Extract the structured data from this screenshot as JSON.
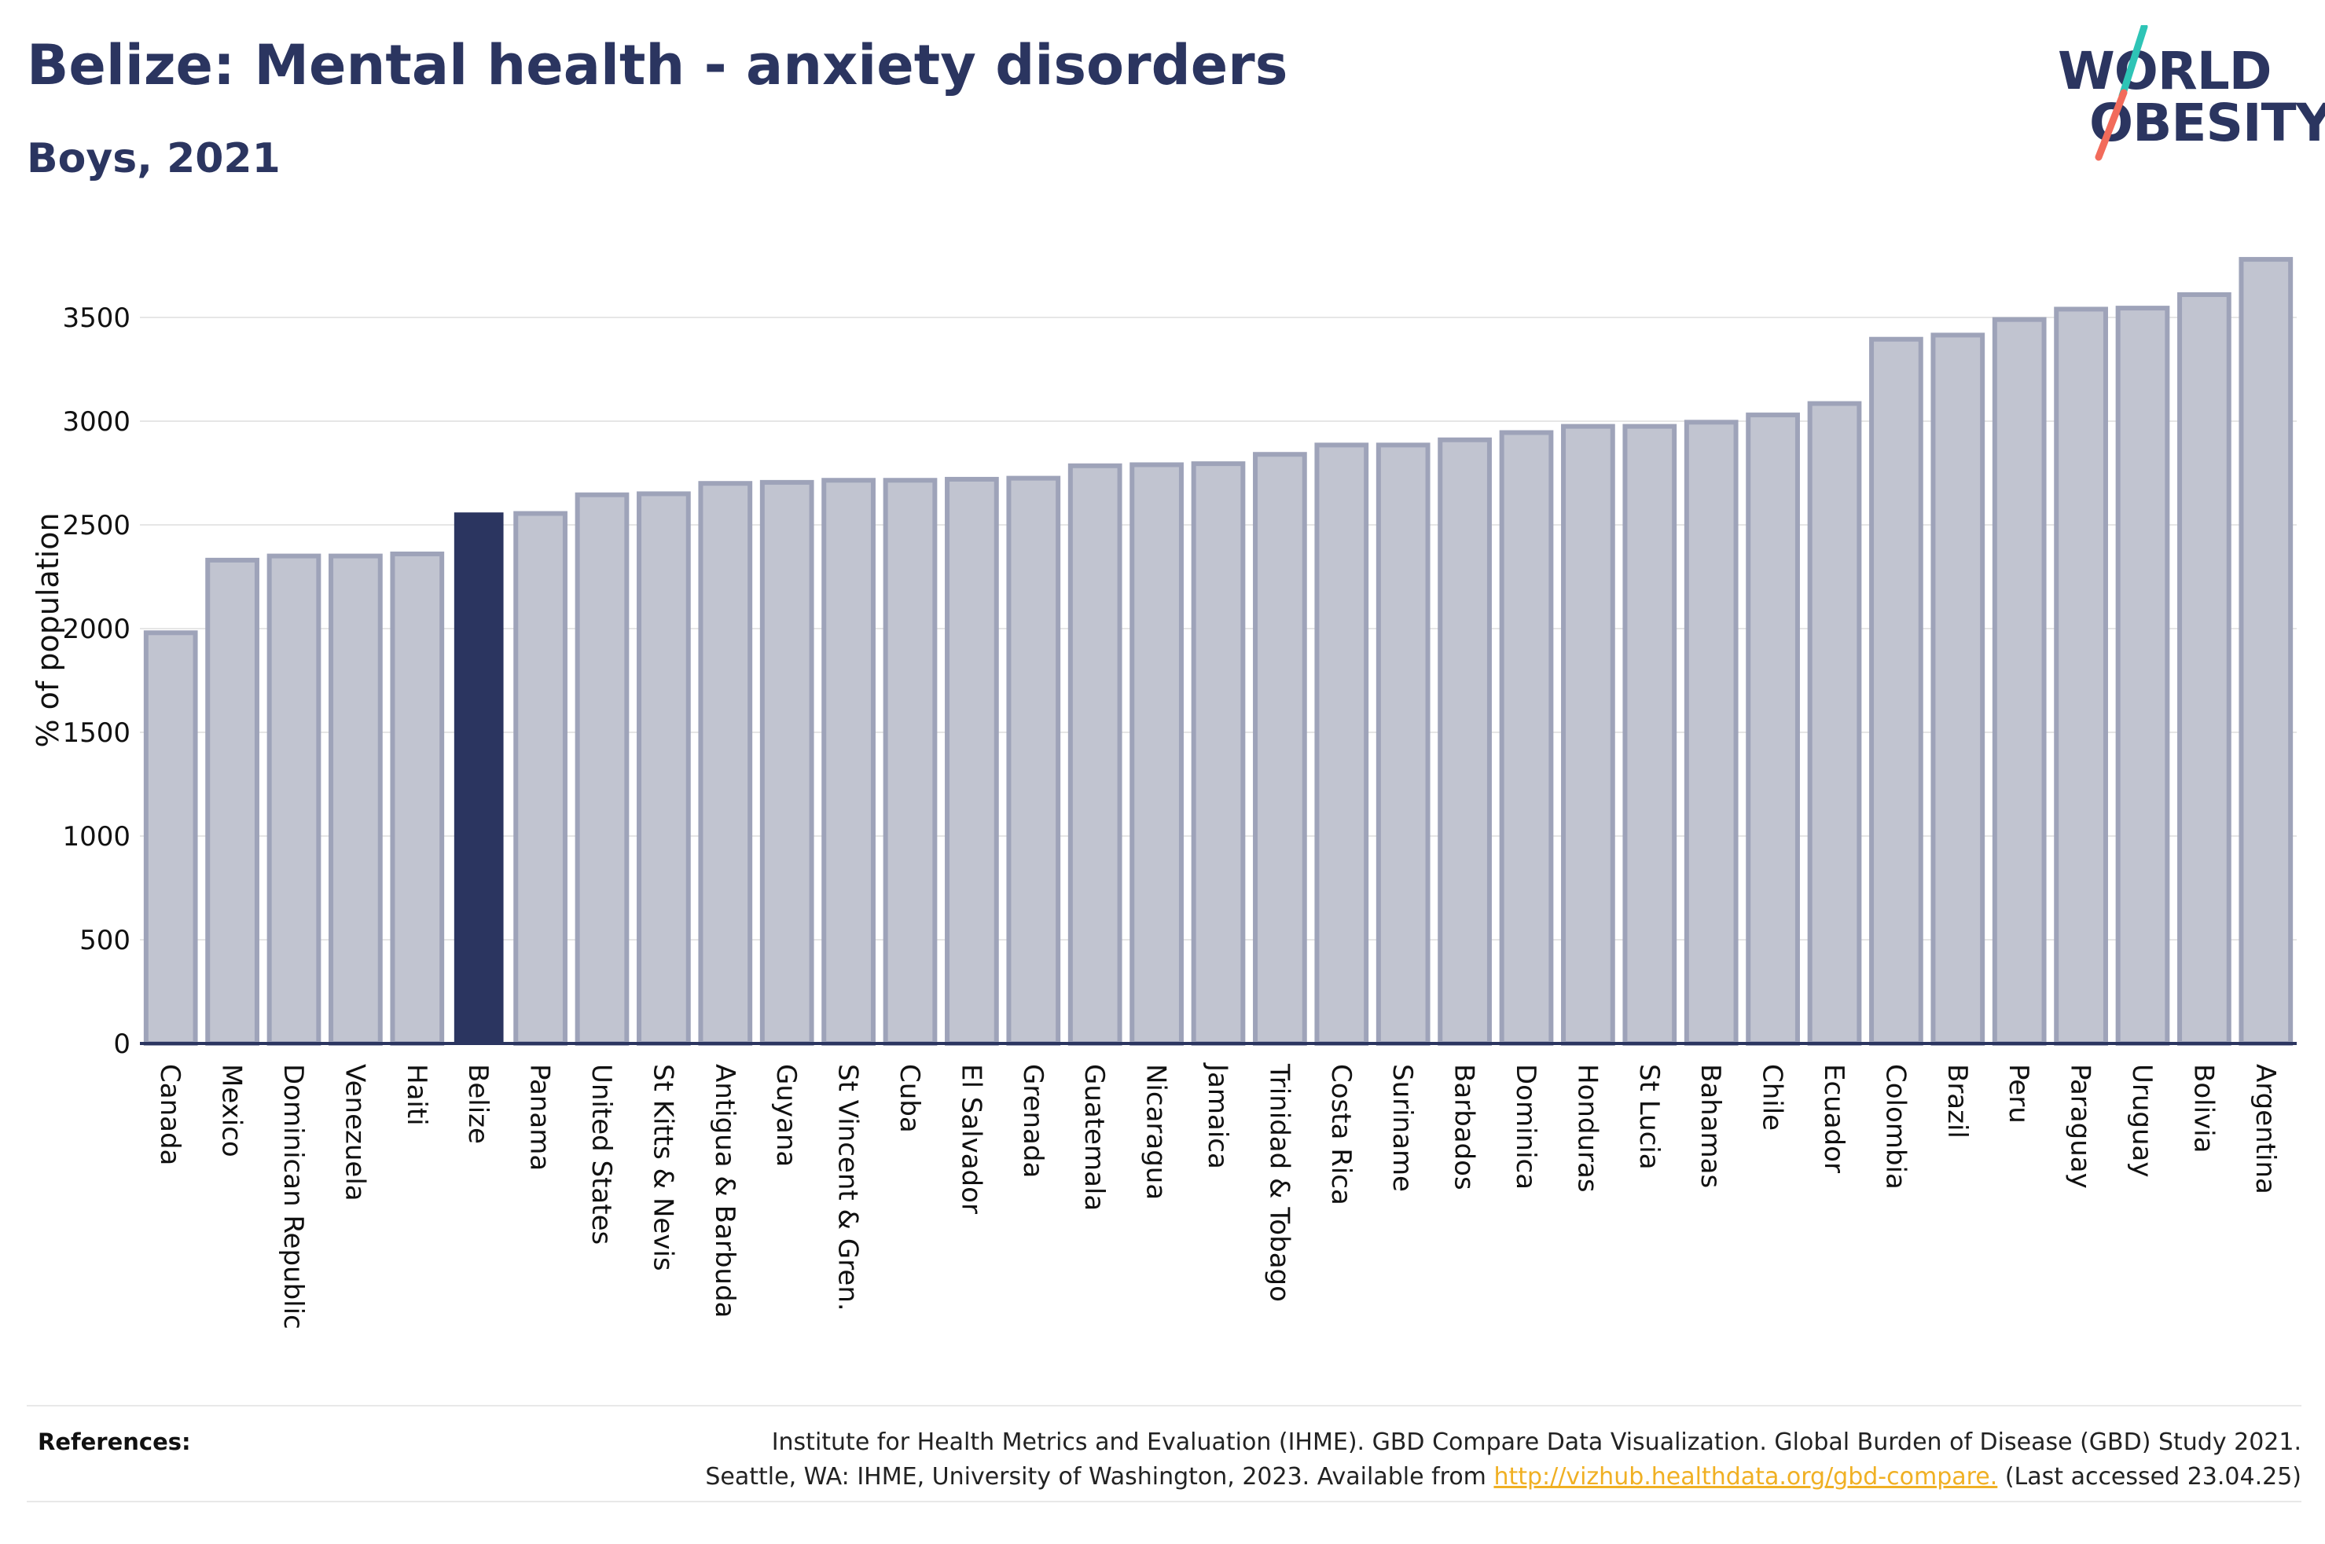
{
  "header": {
    "title": "Belize: Mental health - anxiety disorders",
    "subtitle": "Boys, 2021"
  },
  "logo": {
    "line1": "WORLD",
    "line2": "OBESITY",
    "accent_colors": [
      "#2ec4b6",
      "#f26b5b"
    ]
  },
  "colors": {
    "highlight": "#2b3560",
    "bar_fill": "#c1c4d0",
    "bar_stroke": "#9ea3b9",
    "axis": "#2b3560",
    "grid": "#e6e6e6"
  },
  "chart_data": {
    "type": "bar",
    "title": "Belize: Mental health - anxiety disorders",
    "subtitle": "Boys, 2021",
    "ylabel": "% of population",
    "xlabel": "",
    "ylim": [
      0,
      3800
    ],
    "yticks": [
      0,
      500,
      1000,
      1500,
      2000,
      2500,
      3000,
      3500
    ],
    "grid": true,
    "highlight": "Belize",
    "categories": [
      "Canada",
      "Mexico",
      "Dominican Republic",
      "Venezuela",
      "Haiti",
      "Belize",
      "Panama",
      "United States",
      "St Kitts & Nevis",
      "Antigua & Barbuda",
      "Guyana",
      "St Vincent & Gren.",
      "Cuba",
      "El Salvador",
      "Grenada",
      "Guatemala",
      "Nicaragua",
      "Jamaica",
      "Trinidad & Tobago",
      "Costa Rica",
      "Suriname",
      "Barbados",
      "Dominica",
      "Honduras",
      "St Lucia",
      "Bahamas",
      "Chile",
      "Ecuador",
      "Colombia",
      "Brazil",
      "Peru",
      "Paraguay",
      "Uruguay",
      "Bolivia",
      "Argentina"
    ],
    "values": [
      1980,
      2330,
      2350,
      2350,
      2360,
      2560,
      2555,
      2645,
      2650,
      2700,
      2705,
      2715,
      2715,
      2720,
      2725,
      2785,
      2790,
      2795,
      2840,
      2885,
      2885,
      2910,
      2945,
      2975,
      2975,
      2995,
      3030,
      3085,
      3395,
      3415,
      3490,
      3540,
      3545,
      3610,
      3780
    ]
  },
  "references": {
    "label": "References:",
    "line1": "Institute for Health Metrics and Evaluation (IHME). GBD Compare Data Visualization. Global Burden of Disease (GBD) Study 2021.",
    "line2_prefix": "Seattle, WA: IHME, University of Washington, 2023. Available from ",
    "link": "http://vizhub.healthdata.org/gbd-compare.",
    "line2_suffix": " (Last accessed 23.04.25)"
  }
}
